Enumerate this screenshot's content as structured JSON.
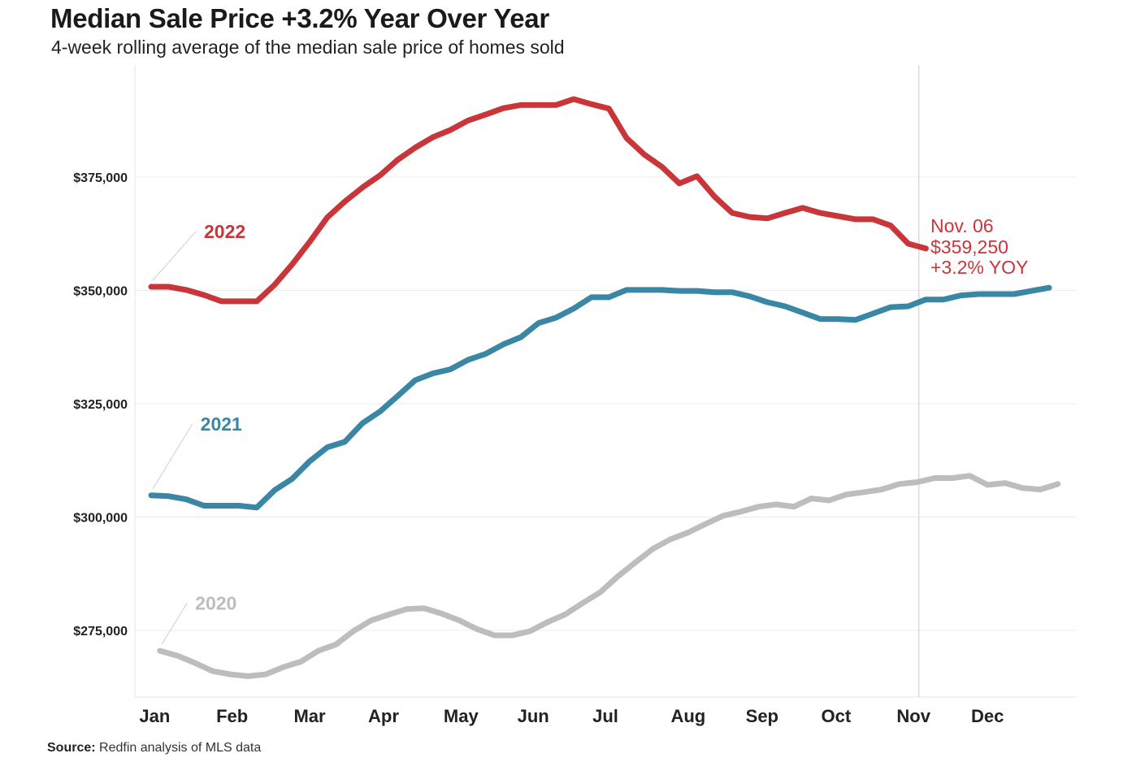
{
  "title": "Median Sale Price +3.2% Year Over Year",
  "subtitle": "4-week rolling average of the median sale price of homes sold",
  "source": {
    "label": "Source:",
    "text": " Redfin analysis of MLS data"
  },
  "annotation": {
    "date": "Nov. 06",
    "value": "$359,250",
    "change": "+3.2% YOY",
    "color": "#c8363a"
  },
  "chart_data": {
    "type": "line",
    "title": "Median Sale Price +3.2% Year Over Year",
    "subtitle": "4-week rolling average of the median sale price of homes sold",
    "xlabel": "",
    "ylabel": "",
    "x_unit": "week of year",
    "xlim": [
      1,
      52
    ],
    "ylim": [
      261000,
      397000
    ],
    "yticks": [
      275000,
      300000,
      325000,
      350000,
      375000
    ],
    "ytick_labels": [
      "$275,000",
      "$300,000",
      "$325,000",
      "$350,000",
      "$375,000"
    ],
    "xtick_labels": [
      "Jan",
      "Feb",
      "Mar",
      "Apr",
      "May",
      "Jun",
      "Jul",
      "Aug",
      "Sep",
      "Oct",
      "Nov",
      "Dec"
    ],
    "xtick_weeks": [
      1.2,
      5.6,
      10.0,
      14.2,
      18.6,
      22.7,
      26.8,
      31.5,
      35.7,
      39.9,
      44.3,
      48.5
    ],
    "grid": "horizontal",
    "reference_line_week": 44.6,
    "series": [
      {
        "name": "2020",
        "color": "#bdbdbd",
        "label_week": 3.5,
        "label_value": 281000,
        "start_week": 1.5,
        "values": [
          270500,
          269400,
          267800,
          266000,
          265300,
          264900,
          265300,
          266900,
          268100,
          270500,
          271900,
          274900,
          277200,
          278500,
          279700,
          279900,
          278700,
          277200,
          275300,
          273900,
          273900,
          274800,
          276800,
          278500,
          281000,
          283400,
          286900,
          290000,
          293000,
          295100,
          296600,
          298500,
          300300,
          301200,
          302300,
          302800,
          302300,
          304100,
          303700,
          305000,
          305500,
          306100,
          307300,
          307700,
          308600,
          308600,
          309100,
          307100,
          307500,
          306400,
          306100,
          307300
        ]
      },
      {
        "name": "2021",
        "color": "#3a87a5",
        "label_week": 3.8,
        "label_value": 320500,
        "start_week": 1,
        "values": [
          304800,
          304600,
          303900,
          302500,
          302500,
          302500,
          302100,
          305900,
          308400,
          312300,
          315400,
          316600,
          320700,
          323300,
          326700,
          330200,
          331700,
          332600,
          334700,
          336000,
          338100,
          339700,
          342800,
          344000,
          346000,
          348500,
          348500,
          350100,
          350100,
          350100,
          349900,
          349900,
          349600,
          349600,
          348700,
          347400,
          346500,
          345100,
          343700,
          343700,
          343500,
          344900,
          346300,
          346500,
          348000,
          348000,
          348900,
          349200,
          349200,
          349200,
          349900,
          350600
        ]
      },
      {
        "name": "2022",
        "color": "#c8363a",
        "label_week": 4.0,
        "label_value": 363000,
        "start_week": 1,
        "values": [
          350800,
          350800,
          350100,
          349000,
          347600,
          347600,
          347600,
          351200,
          355700,
          360700,
          366100,
          369600,
          372700,
          375400,
          378800,
          381500,
          383800,
          385400,
          387500,
          388800,
          390200,
          390900,
          390900,
          390900,
          392200,
          391100,
          390100,
          383600,
          380000,
          377300,
          373600,
          375200,
          370700,
          367100,
          366200,
          365900,
          367100,
          368200,
          367100,
          366400,
          365700,
          365700,
          364300,
          360300,
          359250
        ]
      }
    ]
  }
}
